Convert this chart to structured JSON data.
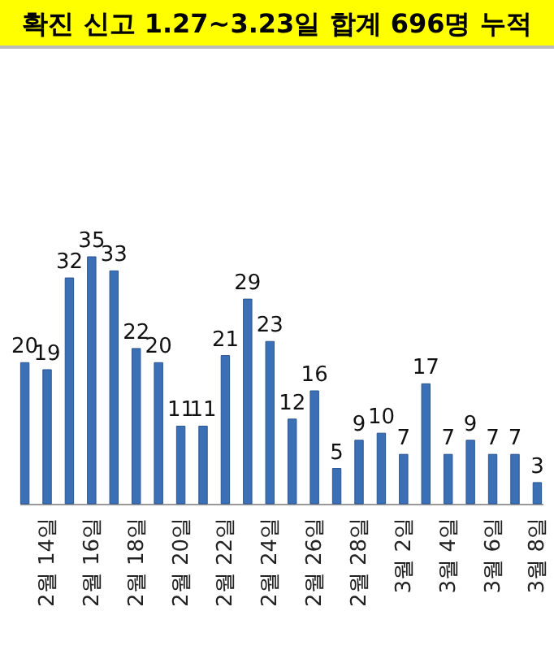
{
  "chart_data": {
    "type": "bar",
    "title": "확진 신고 1.27~3.23일 합계 696명 누적",
    "categories": [
      null,
      "2월 14일",
      null,
      "2월 16일",
      null,
      "2월 18일",
      null,
      "2월 20일",
      null,
      "2월 22일",
      null,
      "2월 24일",
      null,
      "2월 26일",
      null,
      "2월 28일",
      null,
      "3월 2일",
      null,
      "3월 4일",
      null,
      "3월 6일",
      null,
      "3월 8일"
    ],
    "values": [
      20,
      19,
      32,
      35,
      33,
      22,
      20,
      11,
      11,
      21,
      29,
      23,
      12,
      16,
      5,
      9,
      10,
      7,
      17,
      7,
      9,
      7,
      7,
      3
    ],
    "color": "#3b6fb6",
    "data_labels": true
  }
}
